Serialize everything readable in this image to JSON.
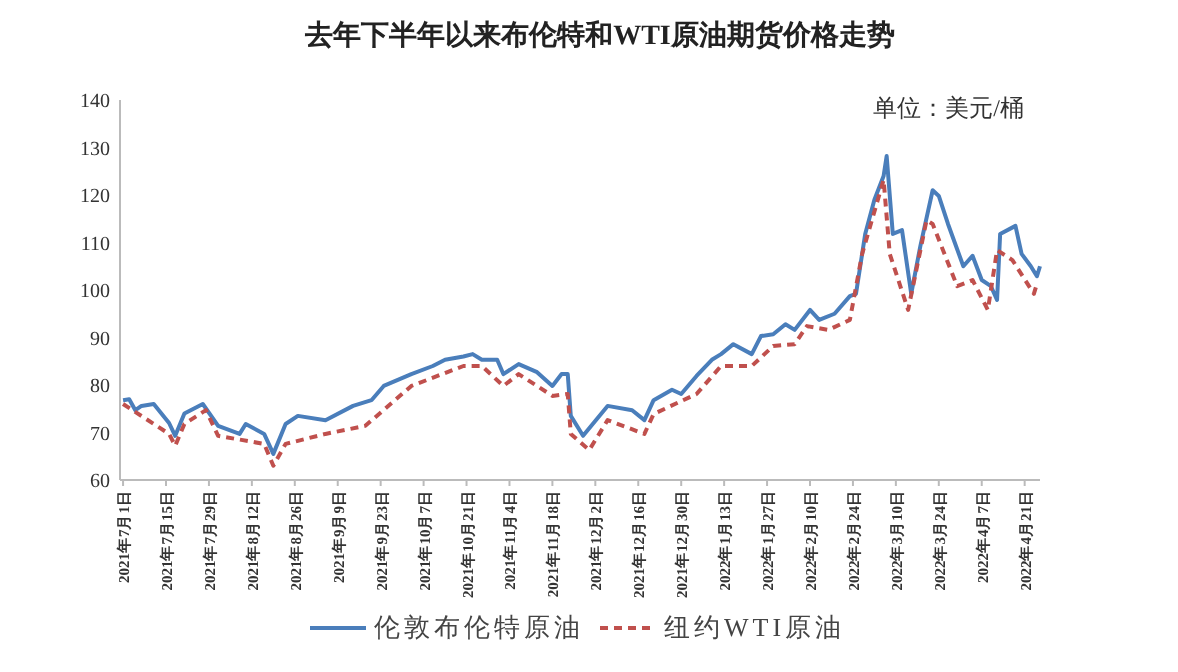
{
  "chart_data": {
    "type": "line",
    "title": "去年下半年以来布伦特和WTI原油期货价格走势",
    "annotations": [
      "单位：美元/桶"
    ],
    "ylim": [
      60,
      140
    ],
    "yticks": [
      60,
      70,
      80,
      90,
      100,
      110,
      120,
      130,
      140
    ],
    "xlim": [
      "2021-06-30",
      "2022-04-26"
    ],
    "xticks": [
      {
        "value": "2021-07-01",
        "label": "2021年7月1日"
      },
      {
        "value": "2021-07-15",
        "label": "2021年7月15日"
      },
      {
        "value": "2021-07-29",
        "label": "2021年7月29日"
      },
      {
        "value": "2021-08-12",
        "label": "2021年8月12日"
      },
      {
        "value": "2021-08-26",
        "label": "2021年8月26日"
      },
      {
        "value": "2021-09-09",
        "label": "2021年9月9日"
      },
      {
        "value": "2021-09-23",
        "label": "2021年9月23日"
      },
      {
        "value": "2021-10-07",
        "label": "2021年10月7日"
      },
      {
        "value": "2021-10-21",
        "label": "2021年10月21日"
      },
      {
        "value": "2021-11-04",
        "label": "2021年11月4日"
      },
      {
        "value": "2021-11-18",
        "label": "2021年11月18日"
      },
      {
        "value": "2021-12-02",
        "label": "2021年12月2日"
      },
      {
        "value": "2021-12-16",
        "label": "2021年12月16日"
      },
      {
        "value": "2021-12-30",
        "label": "2021年12月30日"
      },
      {
        "value": "2022-01-13",
        "label": "2022年1月13日"
      },
      {
        "value": "2022-01-27",
        "label": "2022年1月27日"
      },
      {
        "value": "2022-02-10",
        "label": "2022年2月10日"
      },
      {
        "value": "2022-02-24",
        "label": "2022年2月24日"
      },
      {
        "value": "2022-03-10",
        "label": "2022年3月10日"
      },
      {
        "value": "2022-03-24",
        "label": "2022年3月24日"
      },
      {
        "value": "2022-04-07",
        "label": "2022年4月7日"
      },
      {
        "value": "2022-04-21",
        "label": "2022年4月21日"
      }
    ],
    "legend": "bottom",
    "grid": false,
    "series": [
      {
        "name": "伦敦布伦特原油",
        "color": "#4a7ebb",
        "line_style": "solid",
        "x": [
          "2021-07-01",
          "2021-07-03",
          "2021-07-05",
          "2021-07-07",
          "2021-07-11",
          "2021-07-16",
          "2021-07-18",
          "2021-07-21",
          "2021-07-27",
          "2021-08-01",
          "2021-08-08",
          "2021-08-10",
          "2021-08-16",
          "2021-08-19",
          "2021-08-23",
          "2021-08-27",
          "2021-09-05",
          "2021-09-14",
          "2021-09-20",
          "2021-09-24",
          "2021-10-03",
          "2021-10-10",
          "2021-10-14",
          "2021-10-20",
          "2021-10-23",
          "2021-10-26",
          "2021-10-31",
          "2021-11-02",
          "2021-11-07",
          "2021-11-13",
          "2021-11-18",
          "2021-11-21",
          "2021-11-23",
          "2021-11-24",
          "2021-11-28",
          "2021-12-06",
          "2021-12-14",
          "2021-12-18",
          "2021-12-21",
          "2021-12-27",
          "2021-12-30",
          "2022-01-04",
          "2022-01-09",
          "2022-01-12",
          "2022-01-16",
          "2022-01-22",
          "2022-01-25",
          "2022-01-29",
          "2022-02-02",
          "2022-02-05",
          "2022-02-10",
          "2022-02-13",
          "2022-02-18",
          "2022-02-23",
          "2022-02-25",
          "2022-02-28",
          "2022-03-03",
          "2022-03-06",
          "2022-03-07",
          "2022-03-09",
          "2022-03-12",
          "2022-03-15",
          "2022-03-18",
          "2022-03-22",
          "2022-03-24",
          "2022-03-27",
          "2022-04-01",
          "2022-04-04",
          "2022-04-07",
          "2022-04-10",
          "2022-04-12",
          "2022-04-13",
          "2022-04-18",
          "2022-04-20",
          "2022-04-23",
          "2022-04-25",
          "2022-04-26"
        ],
        "values": [
          76.8,
          77,
          74.7,
          75.6,
          76,
          72,
          69.3,
          74,
          76,
          71.4,
          69.7,
          71.8,
          69.7,
          65.5,
          71.8,
          73.5,
          72.6,
          75.6,
          76.8,
          79.8,
          82.3,
          84,
          85.3,
          86,
          86.5,
          85.3,
          85.3,
          82.3,
          84.4,
          82.7,
          79.8,
          82.3,
          82.3,
          73.5,
          69.3,
          75.6,
          74.7,
          72.6,
          76.8,
          79,
          78.1,
          81.9,
          85.3,
          86.5,
          88.6,
          86.5,
          90.3,
          90.7,
          92.8,
          91.6,
          95.8,
          93.7,
          95,
          98.7,
          99.2,
          111.8,
          119,
          124,
          128.2,
          111.8,
          112.6,
          99.2,
          109.3,
          121,
          119.8,
          113.9,
          105,
          107.2,
          102.1,
          100.8,
          97.9,
          111.8,
          113.5,
          107.6,
          105,
          102.9,
          105
        ]
      },
      {
        "name": "纽约WTI原油",
        "color": "#c0504d",
        "line_style": "dashed",
        "x": [
          "2021-07-01",
          "2021-07-16",
          "2021-07-18",
          "2021-07-21",
          "2021-07-28",
          "2021-08-01",
          "2021-08-16",
          "2021-08-19",
          "2021-08-23",
          "2021-09-05",
          "2021-09-18",
          "2021-10-03",
          "2021-10-20",
          "2021-10-26",
          "2021-11-02",
          "2021-11-07",
          "2021-11-18",
          "2021-11-23",
          "2021-11-24",
          "2021-11-30",
          "2021-12-06",
          "2021-12-18",
          "2021-12-21",
          "2022-01-04",
          "2022-01-12",
          "2022-01-22",
          "2022-01-29",
          "2022-02-05",
          "2022-02-09",
          "2022-02-16",
          "2022-02-23",
          "2022-02-27",
          "2022-03-06",
          "2022-03-08",
          "2022-03-14",
          "2022-03-20",
          "2022-03-22",
          "2022-03-30",
          "2022-04-04",
          "2022-04-09",
          "2022-04-12",
          "2022-04-17",
          "2022-04-24",
          "2022-04-25"
        ],
        "values": [
          76,
          69.7,
          67.2,
          71.8,
          74.7,
          69.3,
          67.6,
          63,
          67.6,
          69.7,
          71.4,
          79.8,
          84,
          84,
          79.8,
          82.3,
          77.7,
          78.1,
          69.7,
          66.3,
          72.6,
          69.7,
          73.9,
          78.1,
          84,
          84,
          88.2,
          88.6,
          92.4,
          91.6,
          93.7,
          107.6,
          123.2,
          107.6,
          95.8,
          114.7,
          113.9,
          100.8,
          102.1,
          95.8,
          108.4,
          106.3,
          99.2,
          101.3
        ]
      }
    ]
  }
}
